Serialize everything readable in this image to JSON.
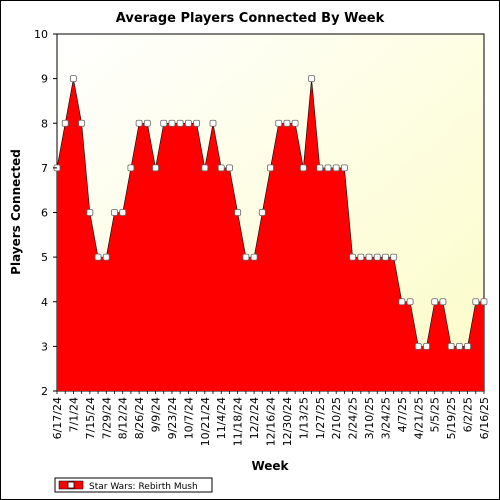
{
  "chart_data": {
    "type": "area",
    "title": "Average Players Connected By Week",
    "xlabel": "Week",
    "ylabel": "Players Connected",
    "ylim": [
      2,
      10
    ],
    "yticks": [
      2,
      3,
      4,
      5,
      6,
      7,
      8,
      9,
      10
    ],
    "grid": false,
    "legend_position": "bottom-left",
    "x_tick_labels": [
      "6/17/24",
      "7/1/24",
      "7/15/24",
      "7/29/24",
      "8/12/24",
      "8/26/24",
      "9/9/24",
      "9/23/24",
      "10/7/24",
      "10/21/24",
      "11/4/24",
      "11/18/24",
      "12/2/24",
      "12/16/24",
      "12/30/24",
      "1/13/25",
      "1/27/25",
      "2/10/25",
      "2/24/25",
      "3/10/25",
      "3/24/25",
      "4/7/25",
      "4/21/25",
      "5/5/25",
      "5/19/25",
      "6/2/25",
      "6/16/25"
    ],
    "series": [
      {
        "name": "Star Wars: Rebirth Mush",
        "color": "#ff0000",
        "values": [
          7,
          8,
          9,
          8,
          6,
          5,
          5,
          6,
          6,
          7,
          8,
          8,
          7,
          8,
          8,
          8,
          8,
          8,
          7,
          8,
          7,
          7,
          6,
          5,
          5,
          6,
          7,
          8,
          8,
          8,
          7,
          9,
          7,
          7,
          7,
          7,
          5,
          5,
          5,
          5,
          5,
          5,
          4,
          4,
          3,
          3,
          4,
          4,
          3,
          3,
          3,
          4,
          4
        ]
      }
    ]
  }
}
